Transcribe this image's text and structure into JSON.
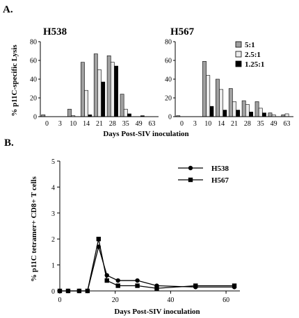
{
  "panel_labels": [
    "A.",
    "B."
  ],
  "chart_data": [
    {
      "type": "bar",
      "title": "H538",
      "ylabel": "% p11C-specific Lysis",
      "xlabel": "",
      "ylim": [
        0,
        80
      ],
      "yticks": [
        0,
        20,
        40,
        60,
        80
      ],
      "categories": [
        "0",
        "3",
        "10",
        "14",
        "21",
        "28",
        "35",
        "49",
        "63"
      ],
      "legend": "none",
      "series": [
        {
          "name": "5:1",
          "color": "#a0a0a0",
          "values": [
            2,
            0,
            8,
            58,
            67,
            65,
            24,
            0,
            0
          ]
        },
        {
          "name": "2.5:1",
          "color": "#ececec",
          "values": [
            0,
            0,
            1,
            28,
            50,
            58,
            8,
            0,
            0
          ]
        },
        {
          "name": "1.25:1",
          "color": "#000000",
          "values": [
            0,
            0,
            0,
            2,
            37,
            54,
            3,
            1,
            0
          ]
        }
      ]
    },
    {
      "type": "bar",
      "title": "H567",
      "ylabel": "",
      "xlabel": "",
      "ylim": [
        0,
        80
      ],
      "yticks": [
        0,
        20,
        40,
        60,
        80
      ],
      "categories": [
        "0",
        "3",
        "10",
        "14",
        "21",
        "28",
        "35",
        "49",
        "63"
      ],
      "legend": "top-right",
      "series": [
        {
          "name": "5:1",
          "color": "#a0a0a0",
          "values": [
            1,
            0,
            59,
            40,
            30,
            17,
            16,
            4,
            2
          ]
        },
        {
          "name": "2.5:1",
          "color": "#ececec",
          "values": [
            0,
            0,
            44,
            29,
            16,
            13,
            9,
            2,
            3
          ]
        },
        {
          "name": "1.25:1",
          "color": "#000000",
          "values": [
            0,
            0,
            11,
            7,
            7,
            5,
            4,
            0,
            0
          ]
        }
      ]
    },
    {
      "type": "line",
      "title": "",
      "xlabel": "Days Post-SIV inoculation",
      "ylabel": "% p11C tetramer+ CD8+ T cells",
      "xlim": [
        0,
        65
      ],
      "ylim": [
        0,
        5
      ],
      "xticks": [
        0,
        20,
        40,
        60
      ],
      "yticks": [
        0,
        1,
        2,
        3,
        4,
        5
      ],
      "legend": "top-right",
      "series": [
        {
          "name": "H538",
          "marker": "circle",
          "x": [
            0,
            3,
            7,
            10,
            14,
            17,
            21,
            28,
            35,
            49,
            63
          ],
          "y": [
            0,
            0,
            0,
            0,
            1.7,
            0.6,
            0.4,
            0.4,
            0.2,
            0.15,
            0.15
          ]
        },
        {
          "name": "H567",
          "marker": "square",
          "x": [
            0,
            3,
            7,
            10,
            14,
            17,
            21,
            28,
            35,
            49,
            63
          ],
          "y": [
            0,
            0,
            0,
            0,
            2.0,
            0.4,
            0.2,
            0.2,
            0.1,
            0.2,
            0.2
          ]
        }
      ]
    }
  ],
  "shared_xlabel_top": "Days Post-SIV inoculation"
}
